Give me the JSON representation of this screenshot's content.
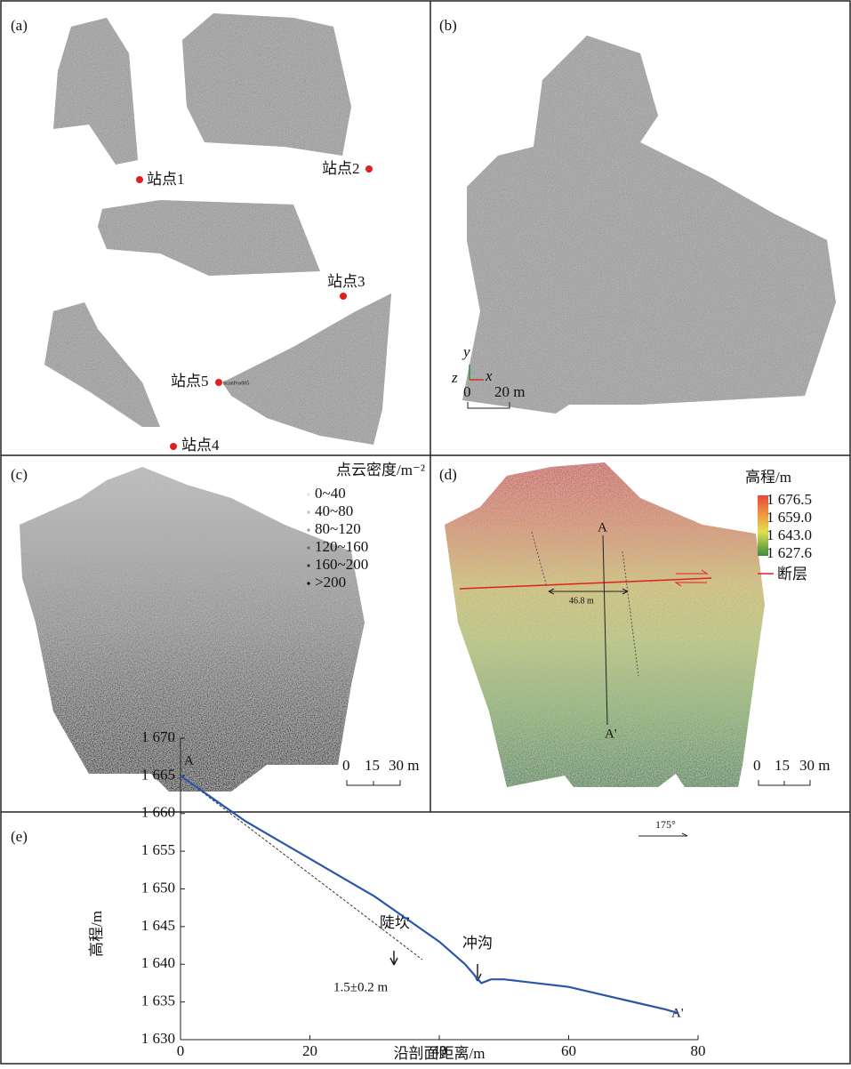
{
  "panels": {
    "a": {
      "label": "(a)",
      "stations": [
        "站点1",
        "站点2",
        "站点3",
        "站点5",
        "站点4"
      ],
      "scan_tag": "ScanPos005"
    },
    "b": {
      "label": "(b)",
      "axis_y": "y",
      "axis_z": "z",
      "axis_x": "x",
      "scale_start": "0",
      "scale_end": "20 m"
    },
    "c": {
      "label": "(c)",
      "legend_title": "点云密度/m⁻²",
      "legend_items": [
        "0~40",
        "40~80",
        "80~120",
        "120~160",
        "160~200",
        ">200"
      ],
      "scale": [
        "0",
        "15",
        "30 m"
      ]
    },
    "d": {
      "label": "(d)",
      "legend_title": "高程/m",
      "colorbar_labels": [
        "1 676.5",
        "1 659.0",
        "1 643.0",
        "1 627.6"
      ],
      "fault_label": "断层",
      "point_a": "A",
      "point_a2": "A'",
      "offset": "46.8 m",
      "scale": [
        "0",
        "15",
        "30 m"
      ]
    }
  },
  "chart_data": {
    "type": "line",
    "panel_label": "(e)",
    "y_label": "高程/m",
    "x_label": "沿剖面距离/m",
    "xlim": [
      0,
      80
    ],
    "xticks": [
      0,
      20,
      40,
      60,
      80
    ],
    "ylim": [
      1630,
      1670
    ],
    "yticks": [
      {
        "value": 1630,
        "label": "1 630"
      },
      {
        "value": 1635,
        "label": "1 635"
      },
      {
        "value": 1640,
        "label": "1 640"
      },
      {
        "value": 1645,
        "label": "1 645"
      },
      {
        "value": 1650,
        "label": "1 650"
      },
      {
        "value": 1655,
        "label": "1 655"
      },
      {
        "value": 1660,
        "label": "1 660"
      },
      {
        "value": 1665,
        "label": "1 665"
      },
      {
        "value": 1670,
        "label": "1 670"
      }
    ],
    "series": [
      {
        "color": "#2a55a8",
        "x": [
          0,
          5,
          10,
          15,
          20,
          25,
          30,
          35,
          40,
          44,
          46.5,
          48,
          50,
          55,
          60,
          65,
          70,
          75,
          77
        ],
        "values": [
          1665,
          1662,
          1659,
          1656.5,
          1654,
          1651.5,
          1649,
          1646,
          1643,
          1640,
          1637.5,
          1638,
          1638,
          1637.5,
          1637,
          1636,
          1635,
          1634,
          1633.5
        ]
      }
    ],
    "annotations": {
      "start": "A",
      "end": "A'",
      "scarp": "陡坎",
      "gully": "冲沟",
      "offset": "1.5±0.2 m",
      "azimuth": "175°"
    }
  }
}
